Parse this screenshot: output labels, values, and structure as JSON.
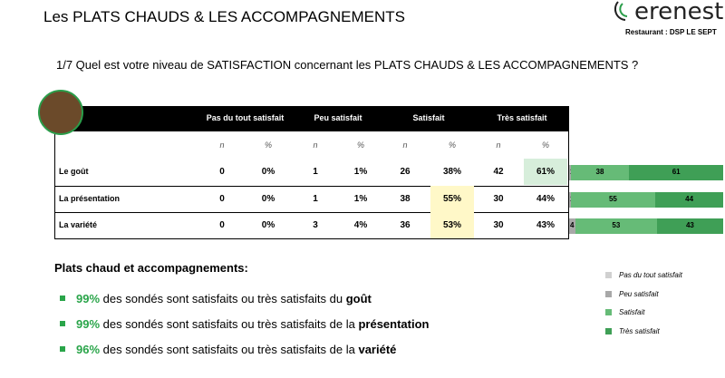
{
  "header": {
    "title": "Les PLATS CHAUDS & LES ACCOMPAGNEMENTS",
    "logo": "erenest",
    "restaurant": "Restaurant : DSP LE SEPT"
  },
  "question": "1/7 Quel est votre niveau de SATISFACTION concernant les PLATS CHAUDS & LES ACCOMPAGNEMENTS ?",
  "table": {
    "columns": [
      "Pas du tout satisfait",
      "Peu satisfait",
      "Satisfait",
      "Très satisfait"
    ],
    "subheaders": [
      "n",
      "%"
    ],
    "colors": [
      "#d0d0d0",
      "#a8a8a8",
      "#66bb77",
      "#3f9f56"
    ],
    "rows": [
      {
        "label": "Le goût",
        "n": [
          0,
          1,
          26,
          42
        ],
        "pct": [
          0,
          1,
          38,
          61
        ],
        "pct_labels": [
          "0%",
          "1%",
          "38%",
          "61%"
        ],
        "highlight": {
          "col": 3,
          "color": "#d7eedb"
        }
      },
      {
        "label": "La présentation",
        "n": [
          0,
          1,
          38,
          30
        ],
        "pct": [
          0,
          1,
          55,
          44
        ],
        "pct_labels": [
          "0%",
          "1%",
          "55%",
          "44%"
        ],
        "highlight": {
          "col": 2,
          "color": "#fff8c8"
        }
      },
      {
        "label": "La variété",
        "n": [
          0,
          3,
          36,
          30
        ],
        "pct": [
          0,
          4,
          53,
          43
        ],
        "pct_labels": [
          "0%",
          "4%",
          "53%",
          "43%"
        ],
        "highlight": {
          "col": 2,
          "color": "#fff8c8"
        }
      }
    ]
  },
  "summary": {
    "title": "Plats chaud et accompagnements:",
    "items": [
      {
        "pct": "99%",
        "text": " des sondés sont satisfaits ou très satisfaits du ",
        "bold": "goût"
      },
      {
        "pct": "99%",
        "text": " des sondés sont satisfaits ou très satisfaits de la ",
        "bold": "présentation"
      },
      {
        "pct": "96%",
        "text": " des sondés sont satisfaits ou très satisfaits de la ",
        "bold": "variété"
      }
    ]
  }
}
